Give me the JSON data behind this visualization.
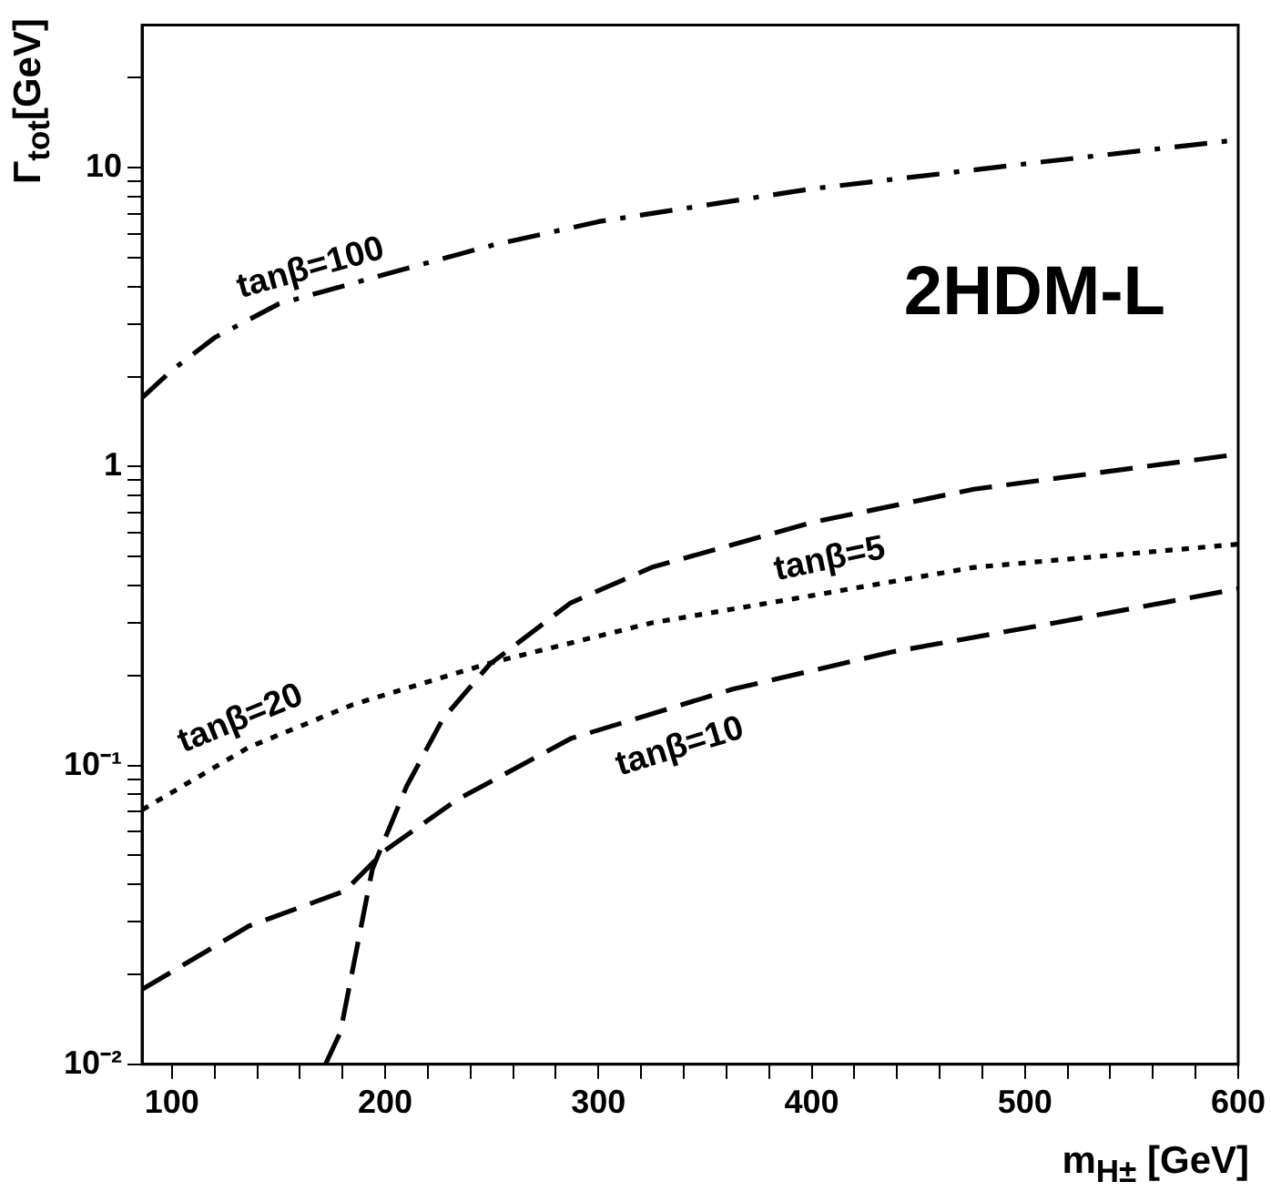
{
  "chart_data": {
    "type": "line",
    "xlabel": "m$_{H±}$ [GeV]",
    "ylabel": "Γ$_{tot}$[GeV]",
    "log": "y",
    "grid": false,
    "legend": false,
    "marker": "none",
    "xlim": [
      86,
      600
    ],
    "ylim": [
      0.01,
      30
    ],
    "xticks": [
      100,
      {
        "value": 120,
        "label": null
      },
      {
        "value": 140,
        "label": null
      },
      {
        "value": 160,
        "label": null
      },
      {
        "value": 180,
        "label": null
      },
      200,
      {
        "value": 220,
        "label": null
      },
      {
        "value": 240,
        "label": null
      },
      {
        "value": 260,
        "label": null
      },
      {
        "value": 280,
        "label": null
      },
      300,
      {
        "value": 320,
        "label": null
      },
      {
        "value": 340,
        "label": null
      },
      {
        "value": 360,
        "label": null
      },
      {
        "value": 380,
        "label": null
      },
      400,
      {
        "value": 420,
        "label": null
      },
      {
        "value": 440,
        "label": null
      },
      {
        "value": 460,
        "label": null
      },
      {
        "value": 480,
        "label": null
      },
      500,
      {
        "value": 520,
        "label": null
      },
      {
        "value": 540,
        "label": null
      },
      {
        "value": 560,
        "label": null
      },
      {
        "value": 580,
        "label": null
      },
      600
    ],
    "yticks": [
      {
        "value": 0.01,
        "label": "10⁻²"
      },
      {
        "value": 0.02,
        "label": null
      },
      {
        "value": 0.03,
        "label": null
      },
      {
        "value": 0.04,
        "label": null
      },
      {
        "value": 0.05,
        "label": null
      },
      {
        "value": 0.06,
        "label": null
      },
      {
        "value": 0.07,
        "label": null
      },
      {
        "value": 0.08,
        "label": null
      },
      {
        "value": 0.09,
        "label": null
      },
      {
        "value": 0.1,
        "label": "10⁻¹"
      },
      {
        "value": 0.2,
        "label": null
      },
      {
        "value": 0.3,
        "label": null
      },
      {
        "value": 0.4,
        "label": null
      },
      {
        "value": 0.5,
        "label": null
      },
      {
        "value": 0.6,
        "label": null
      },
      {
        "value": 0.7,
        "label": null
      },
      {
        "value": 0.8,
        "label": null
      },
      {
        "value": 0.9,
        "label": null
      },
      1,
      {
        "value": 2,
        "label": null
      },
      {
        "value": 3,
        "label": null
      },
      {
        "value": 4,
        "label": null
      },
      {
        "value": 5,
        "label": null
      },
      {
        "value": 6,
        "label": null
      },
      {
        "value": 7,
        "label": null
      },
      {
        "value": 8,
        "label": null
      },
      {
        "value": 9,
        "label": null
      },
      10,
      {
        "value": 20,
        "label": null
      }
    ],
    "series": [
      {
        "name": "tanβ=100",
        "color": "#000000",
        "line_style": "dashdot",
        "x": [
          86,
          100,
          120,
          150,
          200,
          250,
          300,
          400,
          500,
          600
        ],
        "values": [
          1.7,
          2.1,
          2.7,
          3.5,
          4.4,
          5.5,
          6.6,
          8.5,
          10.3,
          12.4
        ]
      },
      {
        "name": "tanβ=5",
        "color": "#000000",
        "line_style": "dashed",
        "x": [
          172,
          179,
          194,
          210,
          227,
          249,
          287,
          325,
          400,
          476,
          600
        ],
        "values": [
          0.01,
          0.0128,
          0.045,
          0.085,
          0.143,
          0.218,
          0.35,
          0.46,
          0.65,
          0.84,
          1.1
        ]
      },
      {
        "name": "tanβ=20",
        "color": "#000000",
        "line_style": "dotted",
        "x": [
          86,
          136,
          185,
          249,
          325,
          400,
          476,
          600
        ],
        "values": [
          0.071,
          0.115,
          0.16,
          0.22,
          0.3,
          0.37,
          0.46,
          0.55
        ]
      },
      {
        "name": "tanβ=10",
        "color": "#000000",
        "line_style": "dashed",
        "x": [
          86,
          136,
          181,
          200,
          234,
          287,
          363,
          438,
          514,
          600
        ],
        "values": [
          0.0178,
          0.029,
          0.038,
          0.052,
          0.077,
          0.123,
          0.18,
          0.24,
          0.3,
          0.39
        ]
      }
    ],
    "annotations": [
      "2HDM-L"
    ]
  }
}
